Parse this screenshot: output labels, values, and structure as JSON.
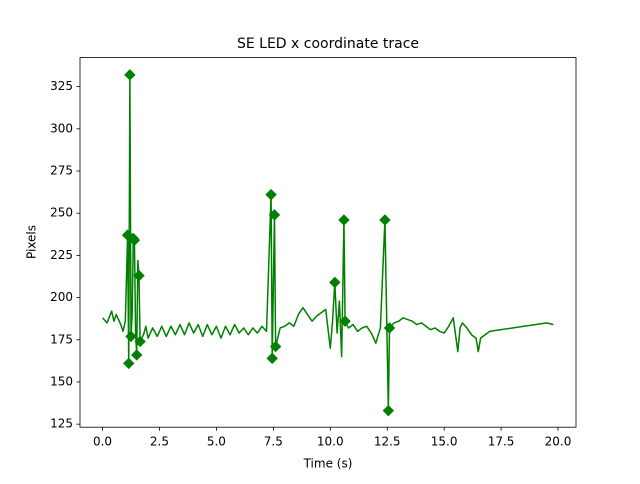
{
  "chart_data": {
    "type": "line",
    "title": "SE LED x coordinate trace",
    "xlabel": "Time (s)",
    "ylabel": "Pixels",
    "xlim": [
      -0.99,
      20.79
    ],
    "ylim": [
      123.2,
      342.2
    ],
    "xticks": [
      {
        "value": 0,
        "label": "0.0"
      },
      {
        "value": 2.5,
        "label": "2.5"
      },
      {
        "value": 5,
        "label": "5.0"
      },
      {
        "value": 7.5,
        "label": "7.5"
      },
      {
        "value": 10,
        "label": "10.0"
      },
      {
        "value": 12.5,
        "label": "12.5"
      },
      {
        "value": 15,
        "label": "15.0"
      },
      {
        "value": 17.5,
        "label": "17.5"
      },
      {
        "value": 20,
        "label": "20.0"
      }
    ],
    "yticks": [
      125,
      150,
      175,
      200,
      225,
      250,
      275,
      300,
      325
    ],
    "grid": false,
    "series": [
      {
        "color": "#008000",
        "marker": "none",
        "x": [
          0.0,
          0.2,
          0.4,
          0.5,
          0.6,
          0.8,
          0.9,
          1.0,
          1.1,
          1.15,
          1.2,
          1.25,
          1.3,
          1.35,
          1.4,
          1.45,
          1.5,
          1.55,
          1.6,
          1.65,
          1.8,
          1.9,
          2.0,
          2.2,
          2.4,
          2.6,
          2.8,
          3.0,
          3.2,
          3.4,
          3.6,
          3.8,
          4.0,
          4.2,
          4.4,
          4.6,
          4.8,
          5.0,
          5.2,
          5.4,
          5.6,
          5.8,
          6.0,
          6.2,
          6.4,
          6.6,
          6.8,
          7.0,
          7.2,
          7.4,
          7.45,
          7.55,
          7.6,
          7.8,
          8.0,
          8.2,
          8.4,
          8.6,
          8.8,
          9.0,
          9.2,
          9.4,
          9.6,
          9.8,
          10.0,
          10.1,
          10.2,
          10.3,
          10.4,
          10.5,
          10.6,
          10.65,
          10.8,
          11.0,
          11.2,
          11.4,
          11.6,
          11.8,
          12.0,
          12.2,
          12.4,
          12.55,
          12.6,
          12.8,
          13.0,
          13.2,
          13.4,
          13.6,
          13.8,
          14.0,
          14.2,
          14.4,
          14.6,
          14.8,
          15.0,
          15.2,
          15.4,
          15.6,
          15.7,
          15.8,
          16.0,
          16.2,
          16.4,
          16.5,
          16.6,
          16.8,
          17.0,
          17.5,
          18.0,
          18.5,
          19.0,
          19.5,
          19.8
        ],
        "values": [
          188,
          185,
          192,
          186,
          190,
          184,
          180,
          186,
          237,
          161,
          332,
          177,
          190,
          235,
          234,
          180,
          166,
          222,
          213,
          174,
          178,
          183,
          176,
          182,
          177,
          183,
          177,
          183,
          178,
          184,
          178,
          185,
          179,
          184,
          177,
          184,
          178,
          183,
          176,
          183,
          178,
          184,
          179,
          182,
          178,
          182,
          179,
          183,
          180,
          261,
          164,
          249,
          171,
          182,
          183,
          185,
          183,
          190,
          194,
          190,
          186,
          189,
          191,
          193,
          170,
          186,
          209,
          179,
          198,
          165,
          246,
          186,
          182,
          184,
          180,
          182,
          183,
          179,
          173,
          182,
          246,
          133,
          182,
          185,
          186,
          188,
          187,
          186,
          184,
          185,
          183,
          181,
          182,
          180,
          179,
          183,
          188,
          168,
          182,
          185,
          182,
          178,
          176,
          168,
          176,
          178,
          180,
          181,
          182,
          183,
          184,
          185,
          184
        ]
      },
      {
        "color": "#008000",
        "marker": "diamond",
        "x": [
          1.1,
          1.15,
          1.2,
          1.25,
          1.35,
          1.4,
          1.5,
          1.6,
          1.65,
          7.4,
          7.45,
          7.55,
          7.6,
          10.2,
          10.6,
          10.65,
          12.4,
          12.55,
          12.6
        ],
        "values": [
          237,
          161,
          332,
          177,
          235,
          234,
          166,
          213,
          174,
          261,
          164,
          249,
          171,
          209,
          246,
          186,
          246,
          133,
          182
        ]
      }
    ]
  }
}
